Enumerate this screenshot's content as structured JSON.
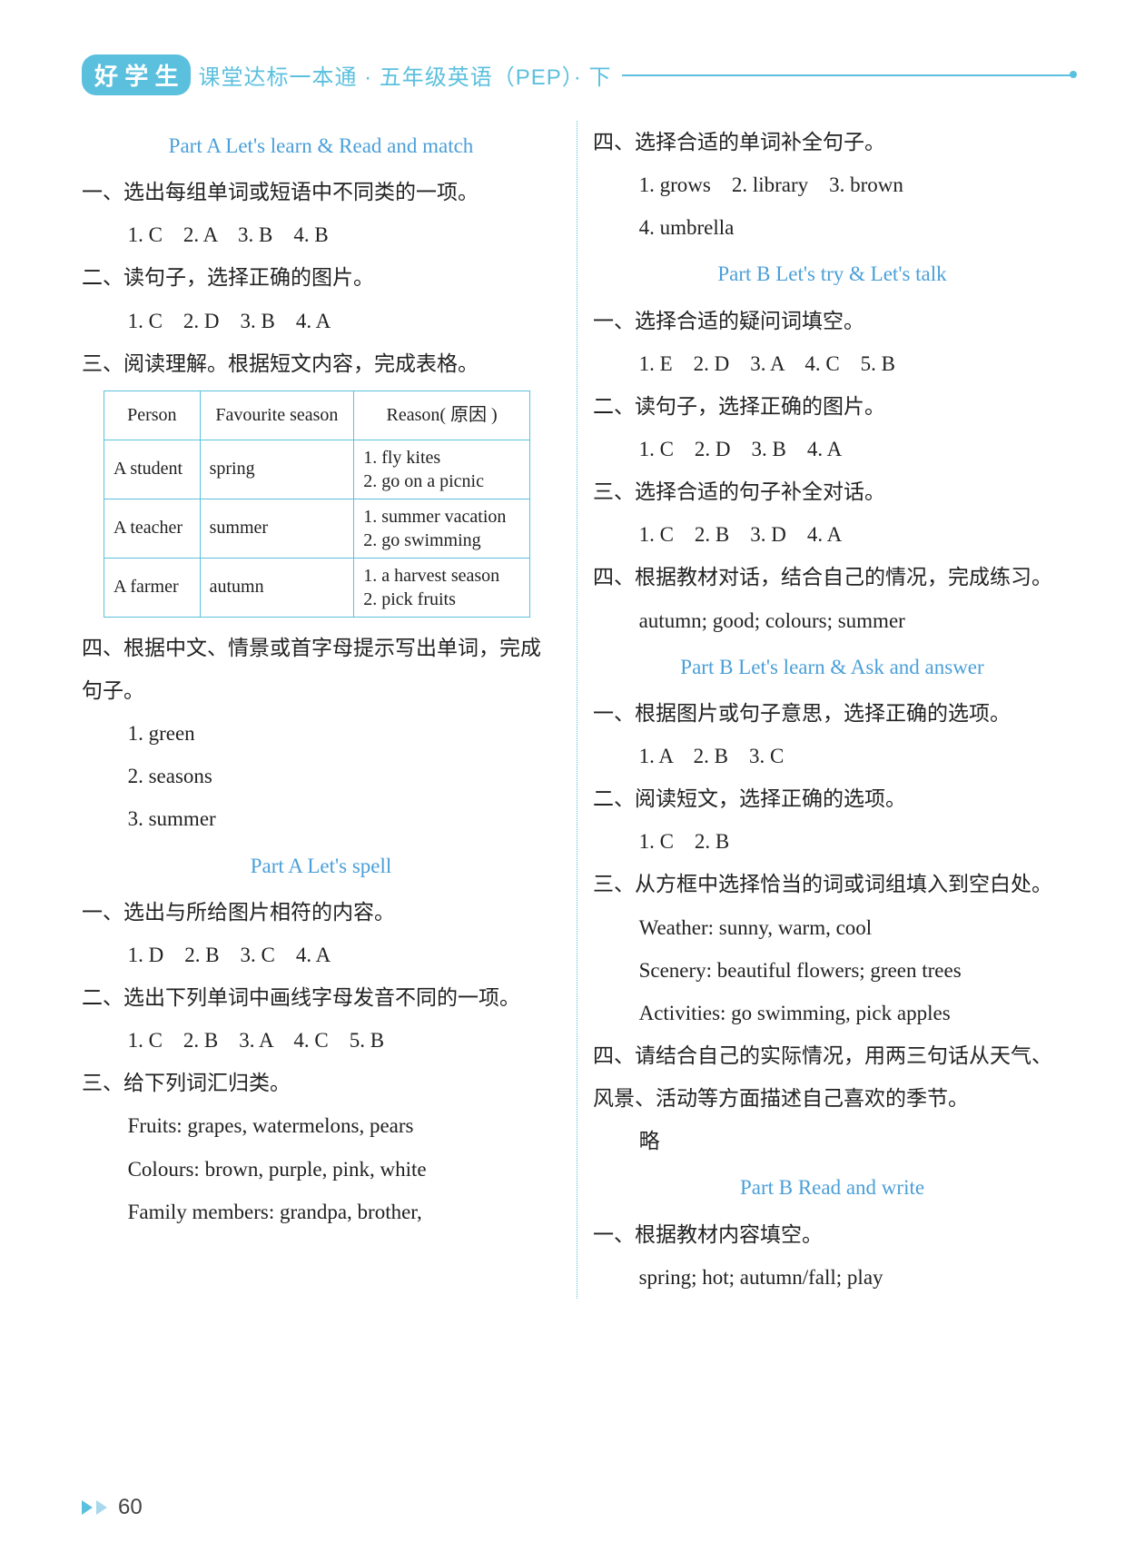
{
  "header": {
    "badge": "好 学 生",
    "title": "课堂达标一本通 · 五年级英语（PEP）· 下"
  },
  "left": {
    "sec1_title": "Part A Let's learn & Read and match",
    "q1": "一、选出每组单词或短语中不同类的一项。",
    "a1": "1. C　2. A　3. B　4. B",
    "q2": "二、读句子，选择正确的图片。",
    "a2": "1. C　2. D　3. B　4. A",
    "q3": "三、阅读理解。根据短文内容，完成表格。",
    "table": {
      "columns": [
        "Person",
        "Favourite season",
        "Reason( 原因 )"
      ],
      "rows": [
        [
          "A student",
          "spring",
          "1. fly kites\n2. go on a picnic"
        ],
        [
          "A teacher",
          "summer",
          "1. summer vacation\n2. go swimming"
        ],
        [
          "A farmer",
          "autumn",
          "1. a harvest season\n2. pick fruits"
        ]
      ]
    },
    "q4": "四、根据中文、情景或首字母提示写出单词，完成句子。",
    "a4_1": "1. green",
    "a4_2": "2. seasons",
    "a4_3": "3. summer",
    "sec2_title": "Part A Let's spell",
    "s2_q1": "一、选出与所给图片相符的内容。",
    "s2_a1": "1. D　2. B　3. C　4. A",
    "s2_q2": "二、选出下列单词中画线字母发音不同的一项。",
    "s2_a2": "1. C　2. B　3. A　4. C　5. B",
    "s2_q3": "三、给下列词汇归类。",
    "s2_a3_1": "Fruits: grapes, watermelons, pears",
    "s2_a3_2": "Colours: brown, purple, pink, white",
    "s2_a3_3": "Family members: grandpa, brother,"
  },
  "right": {
    "q4": "四、选择合适的单词补全句子。",
    "a4": "1. grows　2. library　3. brown",
    "a4b": "4. umbrella",
    "sec3_title": "Part B Let's try & Let's talk",
    "s3_q1": "一、选择合适的疑问词填空。",
    "s3_a1": "1. E　2. D　3. A　4. C　5. B",
    "s3_q2": "二、读句子，选择正确的图片。",
    "s3_a2": "1. C　2. D　3. B　4. A",
    "s3_q3": "三、选择合适的句子补全对话。",
    "s3_a3": "1. C　2. B　3. D　4. A",
    "s3_q4": "四、根据教材对话，结合自己的情况，完成练习。",
    "s3_a4": "autumn; good; colours; summer",
    "sec4_title": "Part B Let's learn & Ask and answer",
    "s4_q1": "一、根据图片或句子意思，选择正确的选项。",
    "s4_a1": "1. A　2. B　3. C",
    "s4_q2": "二、阅读短文，选择正确的选项。",
    "s4_a2": "1. C　2. B",
    "s4_q3": "三、从方框中选择恰当的词或词组填入到空白处。",
    "s4_a3_1": "Weather: sunny, warm, cool",
    "s4_a3_2": "Scenery: beautiful flowers; green trees",
    "s4_a3_3": "Activities: go swimming, pick apples",
    "s4_q4": "四、请结合自己的实际情况，用两三句话从天气、风景、活动等方面描述自己喜欢的季节。",
    "s4_a4": "略",
    "sec5_title": "Part B Read and write",
    "s5_q1": "一、根据教材内容填空。",
    "s5_a1": "spring; hot; autumn/fall; play"
  },
  "page_number": "60",
  "colors": {
    "accent": "#5bc0de",
    "heading": "#4a9fd8",
    "text": "#222222",
    "table_border": "#5bc0de"
  }
}
